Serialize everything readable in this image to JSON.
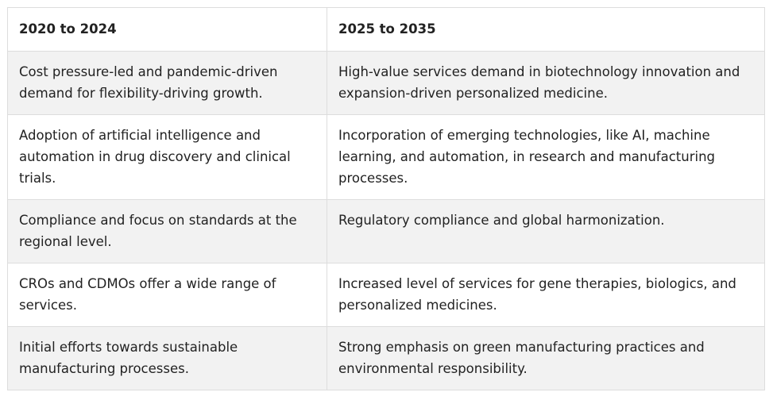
{
  "table": {
    "headers": [
      "2020 to 2024",
      "2025 to 2035"
    ],
    "rows": [
      [
        "Cost pressure-led and pandemic-driven demand for flexibility-driving growth.",
        "High-value services demand in biotechnology innovation and expansion-driven personalized medicine."
      ],
      [
        "Adoption of artificial intelligence and automation in drug discovery and clinical trials.",
        "Incorporation of emerging technologies, like AI, machine learning, and automation, in research and manufacturing processes."
      ],
      [
        "Compliance and focus on standards at the regional level.",
        "Regulatory compliance and global harmonization."
      ],
      [
        "CROs and CDMOs offer a wide range of services.",
        "Increased level of services for gene therapies, biologics, and personalized medicines."
      ],
      [
        "Initial efforts towards sustainable manufacturing processes.",
        "Strong emphasis on green manufacturing practices and environmental responsibility."
      ]
    ]
  }
}
